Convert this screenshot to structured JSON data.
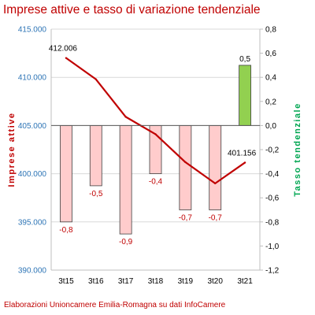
{
  "chart_data": {
    "type": "bar+line",
    "title": "Imprese attive e tasso di variazione tendenziale",
    "source": "Elaborazioni Unioncamere Emilia-Romagna su dati InfoCamere",
    "categories": [
      "3t15",
      "3t16",
      "3t17",
      "3t18",
      "3t19",
      "3t20",
      "3t21"
    ],
    "left_axis": {
      "label": "Imprese attive",
      "ylim": [
        390000,
        415000
      ],
      "ticks": [
        "390.000",
        "395.000",
        "400.000",
        "405.000",
        "410.000",
        "415.000"
      ]
    },
    "right_axis": {
      "label": "Tasso tendenziale",
      "ylim": [
        -1.2,
        0.8
      ],
      "ticks": [
        "-1,2",
        "-1,0",
        "-0,8",
        "-0,6",
        "-0,4",
        "-0,2",
        "0,0",
        "0,2",
        "0,4",
        "0,6",
        "0,8"
      ]
    },
    "series": [
      {
        "name": "Imprese attive",
        "type": "line",
        "axis": "left",
        "color": "#c00000",
        "values": [
          412006,
          409800,
          405900,
          404100,
          401200,
          399000,
          401156
        ],
        "data_labels": [
          "412.006",
          "",
          "",
          "",
          "",
          "",
          "401.156"
        ]
      },
      {
        "name": "Tasso tendenziale",
        "type": "bar",
        "axis": "right",
        "color_negative": "#ffcccc",
        "color_positive": "#92d050",
        "values": [
          -0.8,
          -0.5,
          -0.9,
          -0.4,
          -0.7,
          -0.7,
          0.5
        ],
        "data_labels": [
          "-0,8",
          "-0,5",
          "-0,9",
          "-0,4",
          "-0,7",
          "-0,7",
          "0,5"
        ]
      }
    ],
    "grid": true
  }
}
